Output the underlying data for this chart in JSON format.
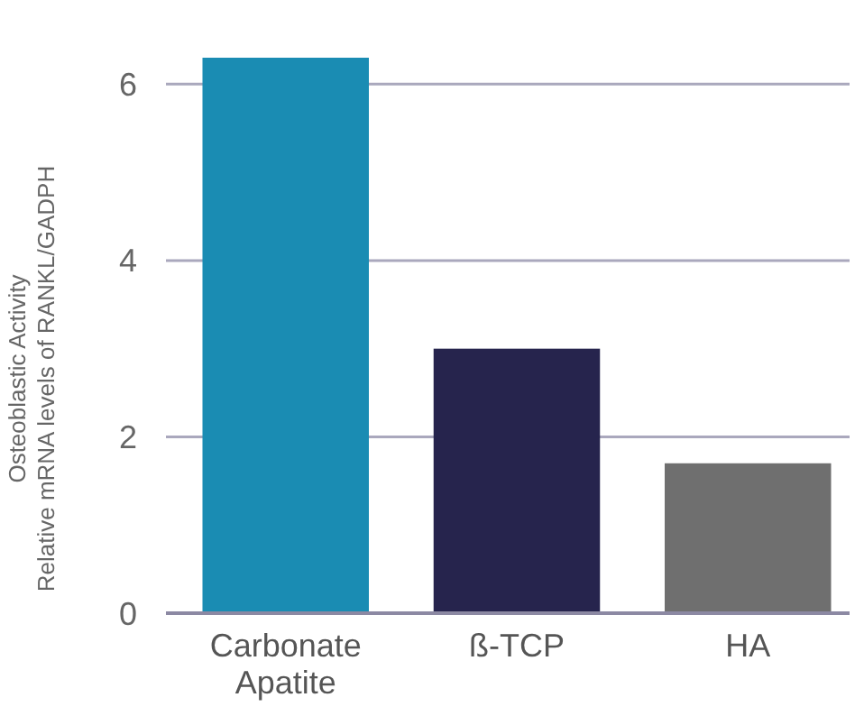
{
  "chart_data": {
    "type": "bar",
    "ylabel": "Osteoblastic Activity\nRelative mRNA levels of RANKL/GADPH",
    "categories": [
      "Carbonate Apatite",
      "ß-TCP",
      "HA"
    ],
    "values": [
      6.3,
      3.0,
      1.7
    ],
    "colors": [
      "#1a8cb3",
      "#26244d",
      "#6f6f6f"
    ],
    "ylim": [
      0,
      6.3
    ],
    "yticks": [
      0,
      2,
      4,
      6
    ],
    "grid": "y"
  }
}
